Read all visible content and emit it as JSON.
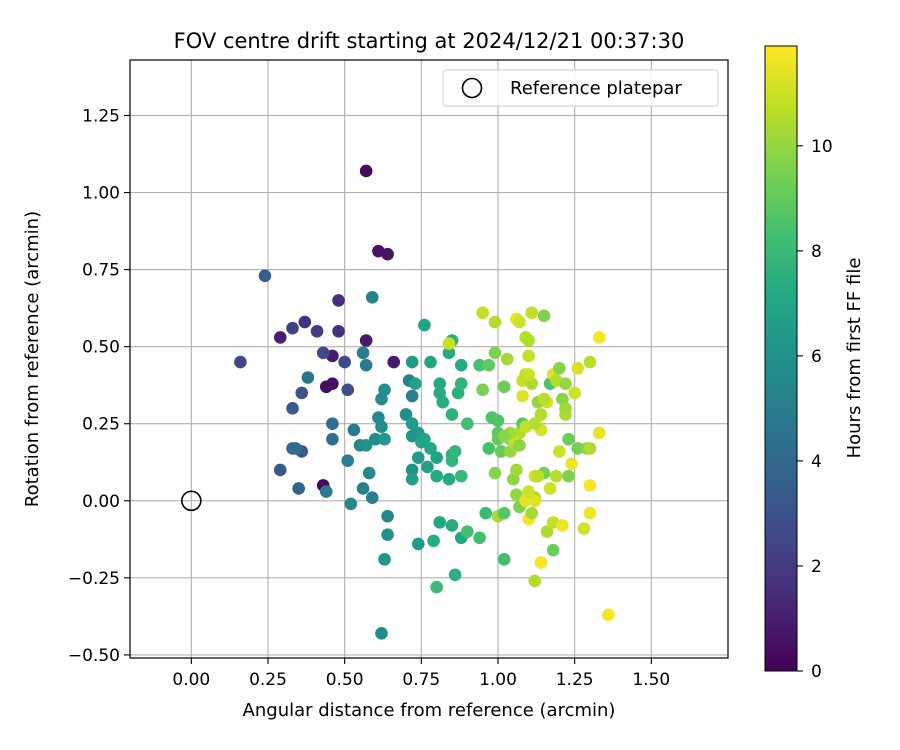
{
  "chart_data": {
    "type": "scatter",
    "title": "FOV centre drift starting at 2024/12/21 00:37:30",
    "xlabel": "Angular distance from reference (arcmin)",
    "ylabel": "Rotation from reference (arcmin)",
    "xlim": [
      -0.2,
      1.75
    ],
    "ylim": [
      -0.51,
      1.43
    ],
    "x_ticks": [
      0.0,
      0.25,
      0.5,
      0.75,
      1.0,
      1.25,
      1.5
    ],
    "x_tick_labels": [
      "0.00",
      "0.25",
      "0.50",
      "0.75",
      "1.00",
      "1.25",
      "1.50"
    ],
    "y_ticks": [
      -0.5,
      -0.25,
      0.0,
      0.25,
      0.5,
      0.75,
      1.0,
      1.25
    ],
    "y_tick_labels": [
      "−0.50",
      "−0.25",
      "0.00",
      "0.25",
      "0.50",
      "0.75",
      "1.00",
      "1.25"
    ],
    "grid": true,
    "legend": {
      "position": "top-right",
      "entries": [
        "Reference platepar"
      ]
    },
    "reference_point": {
      "x": 0.0,
      "y": 0.0,
      "label": "Reference platepar"
    },
    "colorbar": {
      "label": "Hours from first FF file",
      "colormap": "viridis",
      "range": [
        0,
        11.9
      ],
      "ticks": [
        0,
        2,
        4,
        6,
        8,
        10
      ],
      "tick_labels": [
        "0",
        "2",
        "4",
        "6",
        "8",
        "10"
      ]
    },
    "points": [
      [
        0.57,
        1.07,
        0.3
      ],
      [
        0.61,
        0.81,
        0.6
      ],
      [
        0.64,
        0.8,
        0.6
      ],
      [
        0.43,
        0.05,
        0.2
      ],
      [
        0.44,
        0.37,
        0.4
      ],
      [
        0.46,
        0.38,
        0.5
      ],
      [
        0.46,
        0.47,
        0.9
      ],
      [
        0.57,
        0.52,
        0.8
      ],
      [
        0.66,
        0.45,
        0.9
      ],
      [
        0.29,
        0.53,
        1.0
      ],
      [
        0.48,
        0.65,
        1.6
      ],
      [
        0.48,
        0.55,
        1.7
      ],
      [
        0.37,
        0.58,
        1.8
      ],
      [
        0.41,
        0.55,
        2.0
      ],
      [
        0.33,
        0.56,
        2.3
      ],
      [
        0.16,
        0.45,
        2.5
      ],
      [
        0.43,
        0.48,
        2.6
      ],
      [
        0.5,
        0.45,
        2.7
      ],
      [
        0.51,
        0.36,
        2.8
      ],
      [
        0.36,
        0.35,
        3.0
      ],
      [
        0.33,
        0.3,
        3.3
      ],
      [
        0.29,
        0.1,
        3.4
      ],
      [
        0.36,
        0.16,
        3.3
      ],
      [
        0.35,
        0.04,
        3.8
      ],
      [
        0.24,
        0.73,
        3.5
      ],
      [
        0.33,
        0.17,
        4.0
      ],
      [
        0.34,
        0.17,
        4.2
      ],
      [
        0.38,
        0.4,
        4.5
      ],
      [
        0.46,
        0.25,
        4.3
      ],
      [
        0.46,
        0.2,
        4.4
      ],
      [
        0.44,
        0.03,
        4.8
      ],
      [
        0.51,
        0.13,
        5.0
      ],
      [
        0.53,
        0.23,
        4.8
      ],
      [
        0.56,
        0.48,
        5.0
      ],
      [
        0.57,
        0.44,
        4.9
      ],
      [
        0.59,
        0.66,
        5.3
      ],
      [
        0.56,
        0.04,
        5.2
      ],
      [
        0.59,
        0.01,
        5.0
      ],
      [
        0.58,
        0.09,
        5.5
      ],
      [
        0.6,
        0.2,
        5.7
      ],
      [
        0.61,
        0.27,
        5.6
      ],
      [
        0.62,
        0.24,
        5.8
      ],
      [
        0.62,
        0.33,
        5.7
      ],
      [
        0.63,
        0.36,
        5.9
      ],
      [
        0.63,
        -0.19,
        6.2
      ],
      [
        0.64,
        -0.05,
        5.5
      ],
      [
        0.64,
        -0.11,
        6.0
      ],
      [
        0.63,
        0.2,
        6.3
      ],
      [
        0.55,
        0.18,
        5.4
      ],
      [
        0.52,
        -0.01,
        5.6
      ],
      [
        0.62,
        -0.43,
        5.8
      ],
      [
        0.57,
        0.18,
        6.0
      ],
      [
        0.72,
        0.1,
        6.0
      ],
      [
        0.72,
        0.34,
        5.0
      ],
      [
        0.71,
        0.39,
        5.2
      ],
      [
        0.7,
        0.28,
        5.8
      ],
      [
        0.72,
        0.21,
        6.1
      ],
      [
        0.74,
        0.22,
        6.3
      ],
      [
        0.72,
        0.25,
        6.5
      ],
      [
        0.72,
        0.07,
        6.7
      ],
      [
        0.72,
        0.45,
        6.4
      ],
      [
        0.73,
        0.38,
        6.8
      ],
      [
        0.74,
        0.14,
        6.6
      ],
      [
        0.74,
        -0.14,
        6.5
      ],
      [
        0.75,
        0.19,
        6.9
      ],
      [
        0.76,
        0.57,
        7.0
      ],
      [
        0.77,
        0.11,
        6.8
      ],
      [
        0.78,
        0.45,
        7.0
      ],
      [
        0.76,
        0.2,
        7.0
      ],
      [
        0.78,
        0.17,
        7.1
      ],
      [
        0.79,
        -0.13,
        7.3
      ],
      [
        0.8,
        0.14,
        6.9
      ],
      [
        0.81,
        -0.07,
        7.1
      ],
      [
        0.81,
        0.38,
        7.2
      ],
      [
        0.81,
        0.35,
        7.3
      ],
      [
        0.82,
        0.32,
        7.3
      ],
      [
        0.8,
        0.08,
        7.2
      ],
      [
        0.85,
        -0.08,
        7.3
      ],
      [
        0.84,
        0.07,
        7.3
      ],
      [
        0.85,
        0.15,
        7.6
      ],
      [
        0.84,
        0.48,
        7.3
      ],
      [
        0.85,
        0.52,
        7.5
      ],
      [
        0.85,
        0.28,
        7.6
      ],
      [
        0.85,
        0.13,
        7.7
      ],
      [
        0.86,
        0.16,
        7.8
      ],
      [
        0.86,
        -0.24,
        7.5
      ],
      [
        0.87,
        0.35,
        7.5
      ],
      [
        0.88,
        -0.12,
        7.1
      ],
      [
        0.88,
        0.44,
        7.3
      ],
      [
        0.88,
        0.38,
        7.7
      ],
      [
        0.88,
        0.08,
        7.9
      ],
      [
        0.8,
        -0.28,
        8.0
      ],
      [
        0.84,
        0.51,
        10.9
      ],
      [
        0.9,
        0.25,
        8.3
      ],
      [
        0.9,
        -0.1,
        8.3
      ],
      [
        0.94,
        -0.12,
        8.3
      ],
      [
        0.95,
        0.61,
        10.8
      ],
      [
        0.94,
        0.44,
        8.4
      ],
      [
        0.95,
        0.36,
        9.5
      ],
      [
        0.96,
        -0.04,
        8.0
      ],
      [
        0.97,
        0.17,
        8.4
      ],
      [
        0.97,
        0.44,
        9.0
      ],
      [
        0.98,
        0.27,
        8.5
      ],
      [
        0.99,
        0.48,
        9.6
      ],
      [
        0.99,
        0.58,
        10.5
      ],
      [
        0.99,
        0.09,
        9.7
      ],
      [
        1.0,
        0.26,
        8.6
      ],
      [
        1.0,
        0.22,
        8.8
      ],
      [
        1.0,
        -0.05,
        10.3
      ],
      [
        1.0,
        0.2,
        9.0
      ],
      [
        1.01,
        0.16,
        9.1
      ],
      [
        1.02,
        0.37,
        9.2
      ],
      [
        1.02,
        -0.19,
        8.3
      ],
      [
        1.02,
        -0.04,
        8.8
      ],
      [
        1.03,
        0.46,
        10.2
      ],
      [
        1.04,
        0.2,
        9.4
      ],
      [
        1.04,
        0.16,
        10.0
      ],
      [
        1.05,
        0.07,
        9.9
      ],
      [
        1.06,
        0.1,
        10.2
      ],
      [
        1.06,
        0.18,
        10.3
      ],
      [
        1.06,
        0.02,
        10.0
      ],
      [
        1.06,
        0.59,
        11.5
      ],
      [
        1.07,
        0.58,
        11.0
      ],
      [
        1.07,
        0.22,
        10.4
      ],
      [
        1.07,
        -0.02,
        9.6
      ],
      [
        1.08,
        0.25,
        8.7
      ],
      [
        1.08,
        0.34,
        11.3
      ],
      [
        1.08,
        0.39,
        10.9
      ],
      [
        1.09,
        0.41,
        10.7
      ],
      [
        1.09,
        0.24,
        10.8
      ],
      [
        1.09,
        0.53,
        10.6
      ],
      [
        1.1,
        -0.06,
        11.8
      ],
      [
        1.1,
        0.52,
        10.5
      ],
      [
        1.1,
        0.47,
        10.9
      ],
      [
        1.11,
        0.38,
        10.4
      ],
      [
        1.11,
        0.61,
        10.8
      ],
      [
        1.12,
        -0.26,
        10.5
      ],
      [
        1.12,
        0.01,
        10.1
      ],
      [
        1.12,
        0.08,
        11.1
      ],
      [
        1.12,
        0.0,
        11.4
      ],
      [
        1.14,
        -0.2,
        11.8
      ],
      [
        1.14,
        0.28,
        10.5
      ],
      [
        1.14,
        0.23,
        11.2
      ],
      [
        1.15,
        0.6,
        9.6
      ],
      [
        1.15,
        0.09,
        9.4
      ],
      [
        1.16,
        0.32,
        11.1
      ],
      [
        1.16,
        -0.1,
        10.4
      ],
      [
        1.17,
        0.38,
        8.5
      ],
      [
        1.17,
        0.04,
        11.0
      ],
      [
        1.18,
        -0.16,
        9.2
      ],
      [
        1.18,
        0.41,
        11.3
      ],
      [
        1.18,
        -0.07,
        10.8
      ],
      [
        1.19,
        0.39,
        10.5
      ],
      [
        1.19,
        0.08,
        10.6
      ],
      [
        1.2,
        0.43,
        9.7
      ],
      [
        1.2,
        0.16,
        11.0
      ],
      [
        1.21,
        0.33,
        9.8
      ],
      [
        1.21,
        -0.08,
        11.6
      ],
      [
        1.22,
        0.28,
        10.4
      ],
      [
        1.22,
        0.38,
        10.0
      ],
      [
        1.22,
        0.3,
        10.2
      ],
      [
        1.23,
        0.08,
        9.6
      ],
      [
        1.23,
        0.2,
        9.2
      ],
      [
        1.24,
        0.12,
        11.6
      ],
      [
        1.25,
        0.35,
        11.0
      ],
      [
        1.26,
        0.43,
        11.2
      ],
      [
        1.26,
        0.17,
        9.4
      ],
      [
        1.28,
        -0.09,
        11.1
      ],
      [
        1.29,
        0.17,
        9.7
      ],
      [
        1.3,
        0.17,
        10.4
      ],
      [
        1.3,
        0.05,
        11.8
      ],
      [
        1.3,
        -0.04,
        11.6
      ],
      [
        1.3,
        0.45,
        10.6
      ],
      [
        1.33,
        0.53,
        11.7
      ],
      [
        1.33,
        0.22,
        11.5
      ],
      [
        1.36,
        -0.37,
        11.8
      ],
      [
        1.13,
        0.32,
        10.0
      ],
      [
        1.15,
        0.33,
        10.6
      ],
      [
        1.13,
        0.08,
        10.7
      ],
      [
        1.11,
        -0.04,
        10.3
      ],
      [
        1.1,
        0.41,
        11.0
      ],
      [
        1.05,
        0.2,
        10.9
      ],
      [
        1.09,
        0.0,
        11.4
      ],
      [
        1.1,
        0.03,
        11.0
      ],
      [
        1.04,
        0.22,
        10.2
      ],
      [
        1.02,
        0.21,
        9.8
      ],
      [
        1.07,
        0.18,
        9.9
      ],
      [
        1.12,
        0.25,
        10.5
      ]
    ]
  }
}
